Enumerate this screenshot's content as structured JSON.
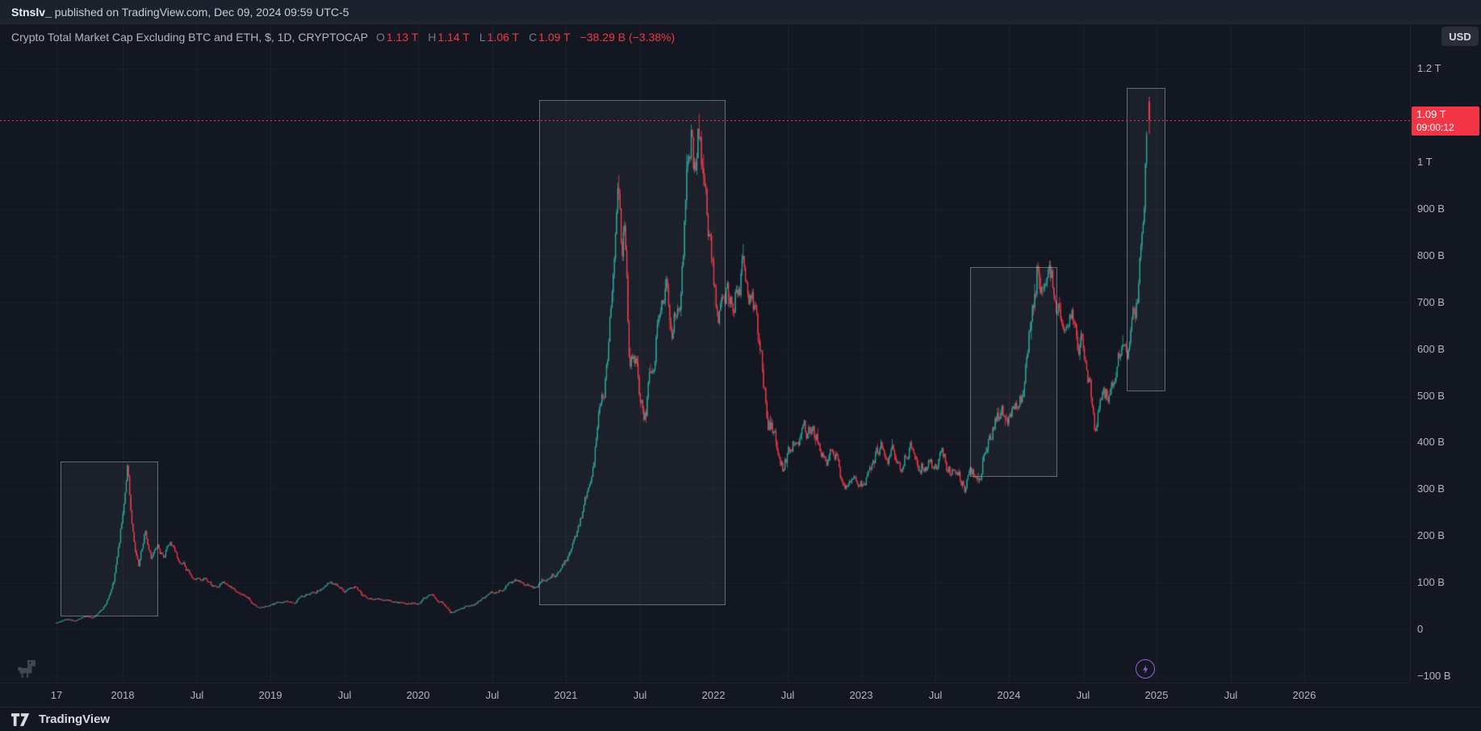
{
  "topbar": {
    "author": "Stnslv_",
    "rest": " published on TradingView.com, Dec 09, 2024 09:59 UTC-5"
  },
  "legend": {
    "title": "Crypto Total Market Cap Excluding BTC and ETH, $, 1D, CRYPTOCAP",
    "ohlc": [
      {
        "label": "O",
        "value": "1.13 T"
      },
      {
        "label": "H",
        "value": "1.14 T"
      },
      {
        "label": "L",
        "value": "1.06 T"
      },
      {
        "label": "C",
        "value": "1.09 T"
      }
    ],
    "change": "−38.29 B (−3.38%)"
  },
  "currency_button": "USD",
  "price_label": {
    "price": "1.09 T",
    "countdown": "09:00:12"
  },
  "footer": {
    "brand": "TradingView"
  },
  "colors": {
    "up": "#26a69a",
    "down": "#f23645",
    "accent_red": "#f23645",
    "purple": "#9c5fd4",
    "bg": "#131722"
  },
  "chart_data": {
    "type": "candlestick",
    "title": "Crypto Total Market Cap Excluding BTC and ETH (CRYPTOCAP, 1D, USD)",
    "ylabel": "Market cap (USD)",
    "x_axis": {
      "labels": [
        {
          "text": "17",
          "t": 2017.55
        },
        {
          "text": "2018",
          "t": 2018
        },
        {
          "text": "Jul",
          "t": 2018.5
        },
        {
          "text": "2019",
          "t": 2019
        },
        {
          "text": "Jul",
          "t": 2019.5
        },
        {
          "text": "2020",
          "t": 2020
        },
        {
          "text": "Jul",
          "t": 2020.5
        },
        {
          "text": "2021",
          "t": 2021
        },
        {
          "text": "Jul",
          "t": 2021.5
        },
        {
          "text": "2022",
          "t": 2022
        },
        {
          "text": "Jul",
          "t": 2022.5
        },
        {
          "text": "2023",
          "t": 2023
        },
        {
          "text": "Jul",
          "t": 2023.5
        },
        {
          "text": "2024",
          "t": 2024
        },
        {
          "text": "Jul",
          "t": 2024.5
        },
        {
          "text": "2025",
          "t": 2025
        },
        {
          "text": "Jul",
          "t": 2025.5
        },
        {
          "text": "2026",
          "t": 2026
        }
      ]
    },
    "y_axis": {
      "unit": "billions USD",
      "range_b": [
        -114,
        1347
      ],
      "ticks": [
        {
          "text": "1.2 T",
          "v": 1200
        },
        {
          "text": "1 T",
          "v": 1000
        },
        {
          "text": "900 B",
          "v": 900
        },
        {
          "text": "800 B",
          "v": 800
        },
        {
          "text": "700 B",
          "v": 700
        },
        {
          "text": "600 B",
          "v": 600
        },
        {
          "text": "500 B",
          "v": 500
        },
        {
          "text": "400 B",
          "v": 400
        },
        {
          "text": "300 B",
          "v": 300
        },
        {
          "text": "200 B",
          "v": 200
        },
        {
          "text": "100 B",
          "v": 100
        },
        {
          "text": "0",
          "v": 0
        },
        {
          "text": "−100 B",
          "v": -100
        }
      ]
    },
    "anchors": [
      [
        2017.55,
        14
      ],
      [
        2017.62,
        21
      ],
      [
        2017.68,
        18
      ],
      [
        2017.74,
        28
      ],
      [
        2017.8,
        27
      ],
      [
        2017.86,
        45
      ],
      [
        2017.9,
        70
      ],
      [
        2017.94,
        110
      ],
      [
        2017.98,
        190
      ],
      [
        2018.01,
        280
      ],
      [
        2018.035,
        350
      ],
      [
        2018.05,
        260
      ],
      [
        2018.08,
        170
      ],
      [
        2018.11,
        135
      ],
      [
        2018.15,
        205
      ],
      [
        2018.19,
        150
      ],
      [
        2018.24,
        175
      ],
      [
        2018.28,
        150
      ],
      [
        2018.32,
        190
      ],
      [
        2018.36,
        155
      ],
      [
        2018.45,
        120
      ],
      [
        2018.55,
        108
      ],
      [
        2018.62,
        88
      ],
      [
        2018.7,
        98
      ],
      [
        2018.78,
        80
      ],
      [
        2018.85,
        72
      ],
      [
        2018.9,
        48
      ],
      [
        2018.97,
        52
      ],
      [
        2019.05,
        58
      ],
      [
        2019.15,
        62
      ],
      [
        2019.28,
        78
      ],
      [
        2019.41,
        95
      ],
      [
        2019.5,
        82
      ],
      [
        2019.58,
        88
      ],
      [
        2019.65,
        70
      ],
      [
        2019.75,
        62
      ],
      [
        2019.88,
        58
      ],
      [
        2020.0,
        62
      ],
      [
        2020.08,
        74
      ],
      [
        2020.16,
        62
      ],
      [
        2020.22,
        36
      ],
      [
        2020.3,
        44
      ],
      [
        2020.4,
        58
      ],
      [
        2020.5,
        74
      ],
      [
        2020.6,
        96
      ],
      [
        2020.66,
        104
      ],
      [
        2020.72,
        92
      ],
      [
        2020.8,
        99
      ],
      [
        2020.88,
        108
      ],
      [
        2020.96,
        122
      ],
      [
        2021.02,
        155
      ],
      [
        2021.08,
        215
      ],
      [
        2021.14,
        290
      ],
      [
        2021.2,
        400
      ],
      [
        2021.26,
        520
      ],
      [
        2021.31,
        700
      ],
      [
        2021.355,
        980
      ],
      [
        2021.38,
        820
      ],
      [
        2021.4,
        910
      ],
      [
        2021.43,
        610
      ],
      [
        2021.46,
        650
      ],
      [
        2021.5,
        530
      ],
      [
        2021.54,
        465
      ],
      [
        2021.58,
        555
      ],
      [
        2021.63,
        690
      ],
      [
        2021.68,
        790
      ],
      [
        2021.72,
        670
      ],
      [
        2021.77,
        760
      ],
      [
        2021.81,
        930
      ],
      [
        2021.85,
        1100
      ],
      [
        2021.87,
        990
      ],
      [
        2021.9,
        1060
      ],
      [
        2021.94,
        900
      ],
      [
        2021.98,
        830
      ],
      [
        2022.03,
        690
      ],
      [
        2022.08,
        740
      ],
      [
        2022.13,
        700
      ],
      [
        2022.2,
        780
      ],
      [
        2022.26,
        730
      ],
      [
        2022.32,
        610
      ],
      [
        2022.37,
        450
      ],
      [
        2022.42,
        415
      ],
      [
        2022.47,
        355
      ],
      [
        2022.54,
        395
      ],
      [
        2022.61,
        445
      ],
      [
        2022.68,
        405
      ],
      [
        2022.76,
        390
      ],
      [
        2022.83,
        372
      ],
      [
        2022.87,
        312
      ],
      [
        2022.93,
        298
      ],
      [
        2023.0,
        295
      ],
      [
        2023.07,
        355
      ],
      [
        2023.13,
        398
      ],
      [
        2023.2,
        372
      ],
      [
        2023.27,
        362
      ],
      [
        2023.34,
        398
      ],
      [
        2023.42,
        372
      ],
      [
        2023.5,
        350
      ],
      [
        2023.56,
        365
      ],
      [
        2023.63,
        332
      ],
      [
        2023.7,
        312
      ],
      [
        2023.78,
        335
      ],
      [
        2023.85,
        392
      ],
      [
        2023.92,
        442
      ],
      [
        2023.99,
        468
      ],
      [
        2024.04,
        452
      ],
      [
        2024.1,
        505
      ],
      [
        2024.15,
        640
      ],
      [
        2024.19,
        780
      ],
      [
        2024.23,
        705
      ],
      [
        2024.27,
        748
      ],
      [
        2024.33,
        682
      ],
      [
        2024.39,
        705
      ],
      [
        2024.45,
        645
      ],
      [
        2024.5,
        622
      ],
      [
        2024.55,
        565
      ],
      [
        2024.585,
        462
      ],
      [
        2024.62,
        545
      ],
      [
        2024.67,
        522
      ],
      [
        2024.72,
        558
      ],
      [
        2024.77,
        598
      ],
      [
        2024.81,
        588
      ],
      [
        2024.855,
        638
      ],
      [
        2024.885,
        742
      ],
      [
        2024.905,
        872
      ],
      [
        2024.925,
        1040
      ],
      [
        2024.94,
        1090
      ]
    ],
    "last": {
      "open": 1130,
      "high": 1140,
      "low": 1060,
      "close": 1090
    },
    "price_line": 1090,
    "boxes": [
      {
        "t1": 2017.58,
        "t2": 2018.24,
        "v1": 359,
        "v2": 28
      },
      {
        "t1": 2020.82,
        "t2": 2022.08,
        "v1": 1133,
        "v2": 52
      },
      {
        "t1": 2023.74,
        "t2": 2024.33,
        "v1": 776,
        "v2": 326
      },
      {
        "t1": 2024.8,
        "t2": 2025.06,
        "v1": 1159,
        "v2": 510
      }
    ],
    "marker": {
      "t": 2024.925,
      "v": -85,
      "type": "lightning"
    }
  }
}
